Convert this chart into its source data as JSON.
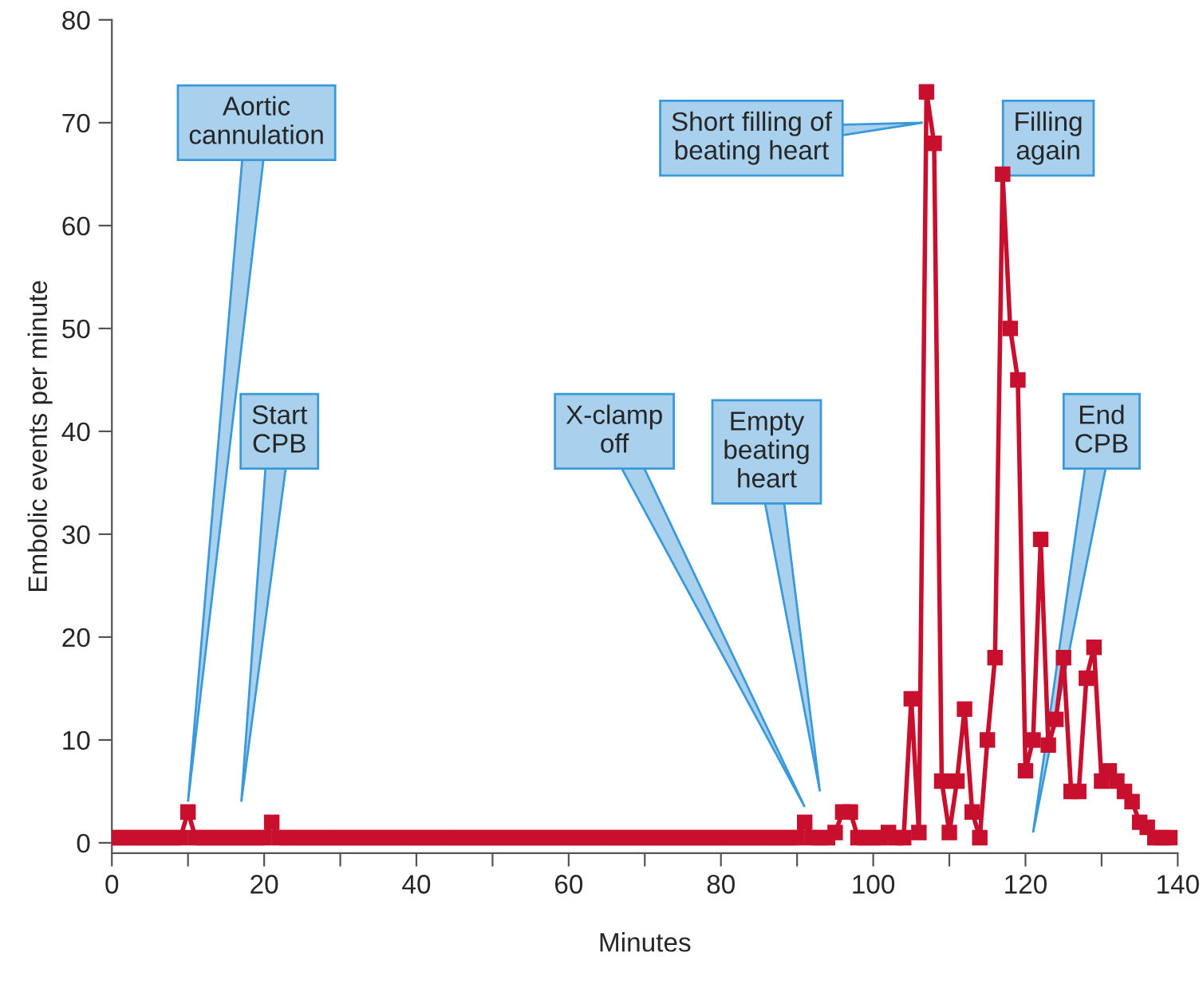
{
  "chart_data": {
    "type": "line",
    "xlabel": "Minutes",
    "ylabel": "Embolic events per minute",
    "xlim": [
      0,
      140
    ],
    "xticks": [
      0,
      {
        "value": 10,
        "label": null
      },
      20,
      {
        "value": 30,
        "label": null
      },
      40,
      {
        "value": 50,
        "label": null
      },
      60,
      {
        "value": 70,
        "label": null
      },
      80,
      {
        "value": 90,
        "label": null
      },
      100,
      {
        "value": 110,
        "label": null
      },
      120,
      {
        "value": 130,
        "label": null
      },
      140
    ],
    "ylim": [
      -1,
      80
    ],
    "yticks": [
      0,
      10,
      20,
      30,
      40,
      50,
      60,
      70,
      80
    ],
    "grid": false,
    "legend": false,
    "marker": "square",
    "line_style": "solid",
    "series": [
      {
        "color": "#c8102e",
        "x": [
          0,
          1,
          2,
          3,
          4,
          5,
          6,
          7,
          8,
          9,
          10,
          11,
          12,
          13,
          14,
          15,
          16,
          17,
          18,
          19,
          20,
          21,
          22,
          23,
          24,
          25,
          26,
          27,
          28,
          29,
          30,
          31,
          32,
          33,
          34,
          35,
          36,
          37,
          38,
          39,
          40,
          41,
          42,
          43,
          44,
          45,
          46,
          47,
          48,
          49,
          50,
          51,
          52,
          53,
          54,
          55,
          56,
          57,
          58,
          59,
          60,
          61,
          62,
          63,
          64,
          65,
          66,
          67,
          68,
          69,
          70,
          71,
          72,
          73,
          74,
          75,
          76,
          77,
          78,
          79,
          80,
          81,
          82,
          83,
          84,
          85,
          86,
          87,
          88,
          89,
          90,
          91,
          92,
          93,
          94,
          95,
          96,
          97,
          98,
          99,
          100,
          101,
          102,
          103,
          104,
          105,
          106,
          107,
          108,
          109,
          110,
          111,
          112,
          113,
          114,
          115,
          116,
          117,
          118,
          119,
          120,
          121,
          122,
          123,
          124,
          125,
          126,
          127,
          128,
          129,
          130,
          131,
          132,
          133,
          134,
          135,
          136,
          137,
          138,
          139
        ],
        "values": [
          0.5,
          0.5,
          0.5,
          0.5,
          0.5,
          0.5,
          0.5,
          0.5,
          0.5,
          0.5,
          3,
          0.5,
          0.5,
          0.5,
          0.5,
          0.5,
          0.5,
          0.5,
          0.5,
          0.5,
          0.5,
          2,
          0.5,
          0.5,
          0.5,
          0.5,
          0.5,
          0.5,
          0.5,
          0.5,
          0.5,
          0.5,
          0.5,
          0.5,
          0.5,
          0.5,
          0.5,
          0.5,
          0.5,
          0.5,
          0.5,
          0.5,
          0.5,
          0.5,
          0.5,
          0.5,
          0.5,
          0.5,
          0.5,
          0.5,
          0.5,
          0.5,
          0.5,
          0.5,
          0.5,
          0.5,
          0.5,
          0.5,
          0.5,
          0.5,
          0.5,
          0.5,
          0.5,
          0.5,
          0.5,
          0.5,
          0.5,
          0.5,
          0.5,
          0.5,
          0.5,
          0.5,
          0.5,
          0.5,
          0.5,
          0.5,
          0.5,
          0.5,
          0.5,
          0.5,
          0.5,
          0.5,
          0.5,
          0.5,
          0.5,
          0.5,
          0.5,
          0.5,
          0.5,
          0.5,
          0.5,
          2,
          0.5,
          0.5,
          0.5,
          1,
          3,
          3,
          0.5,
          0.5,
          0.5,
          0.5,
          1,
          0.5,
          0.5,
          14,
          1,
          73,
          68,
          6,
          1,
          6,
          13,
          3,
          0.5,
          10,
          18,
          65,
          50,
          45,
          7,
          10,
          29.5,
          9.5,
          12,
          18,
          5,
          5,
          16,
          19,
          6,
          7,
          6,
          5,
          4,
          2,
          1.5,
          0.5,
          0.5,
          0.5
        ]
      }
    ],
    "annotations": [
      "Aortic\ncannulation",
      "Start\nCPB",
      "X-clamp\noff",
      "Empty\nbeating\nheart",
      "Short filling of\nbeating heart",
      "Filling\nagain",
      "End\nCPB"
    ]
  }
}
